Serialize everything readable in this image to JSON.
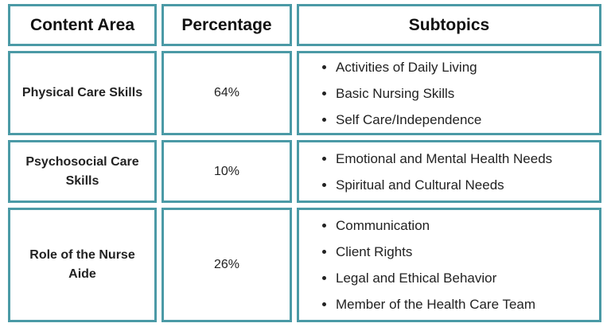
{
  "table": {
    "header": [
      "Content Area",
      "Percentage",
      "Subtopics"
    ],
    "rows": [
      {
        "area": "Physical Care Skills",
        "percentage": "64%",
        "subtopics": [
          "Activities of Daily Living",
          "Basic Nursing Skills",
          "Self Care/Independence"
        ]
      },
      {
        "area": "Psychosocial Care Skills",
        "percentage": "10%",
        "subtopics": [
          "Emotional and Mental Health Needs",
          "Spiritual and Cultural Needs"
        ]
      },
      {
        "area": "Role of the Nurse Aide",
        "percentage": "26%",
        "subtopics": [
          "Communication",
          "Client Rights",
          "Legal and Ethical Behavior",
          "Member of the Health Care Team"
        ]
      }
    ]
  }
}
